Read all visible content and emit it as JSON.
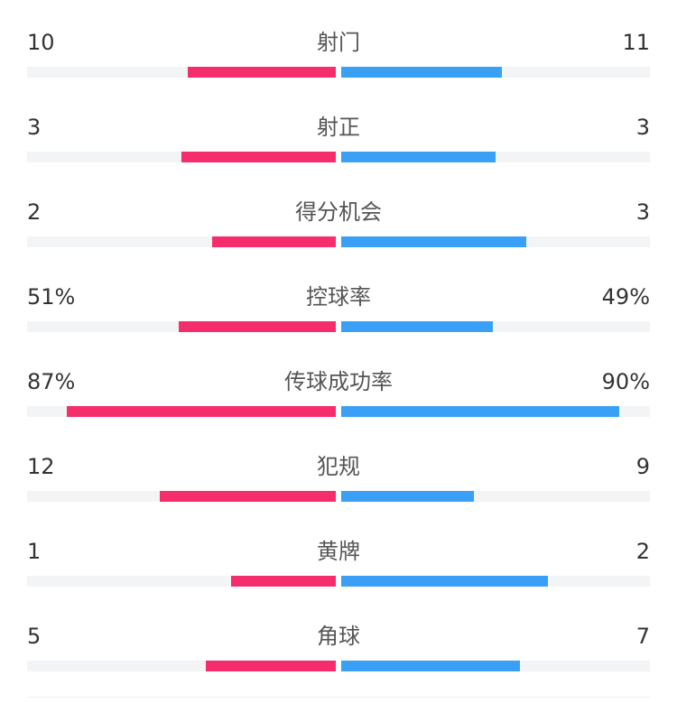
{
  "chart_data": {
    "type": "bar",
    "orientation": "horizontal-diverging",
    "colors": {
      "home": "#f52d6c",
      "away": "#3aa0f5",
      "track": "#f3f4f6"
    },
    "categories": [
      "射门",
      "射正",
      "得分机会",
      "控球率",
      "传球成功率",
      "犯规",
      "黄牌",
      "角球"
    ],
    "series": [
      {
        "values": [
          10,
          3,
          2,
          51,
          87,
          12,
          1,
          5
        ]
      },
      {
        "values": [
          11,
          3,
          3,
          49,
          90,
          9,
          2,
          7
        ]
      }
    ],
    "display": {
      "home": [
        "10",
        "3",
        "2",
        "51%",
        "87%",
        "12",
        "1",
        "5"
      ],
      "away": [
        "11",
        "3",
        "3",
        "49%",
        "90%",
        "9",
        "2",
        "7"
      ]
    },
    "bar_fill_fraction": {
      "home": [
        0.48,
        0.5,
        0.4,
        0.51,
        0.87,
        0.57,
        0.34,
        0.42
      ],
      "away": [
        0.52,
        0.5,
        0.6,
        0.49,
        0.9,
        0.43,
        0.67,
        0.58
      ]
    },
    "title": "",
    "xlabel": "",
    "ylabel": "",
    "grid": false,
    "legend": "none"
  }
}
